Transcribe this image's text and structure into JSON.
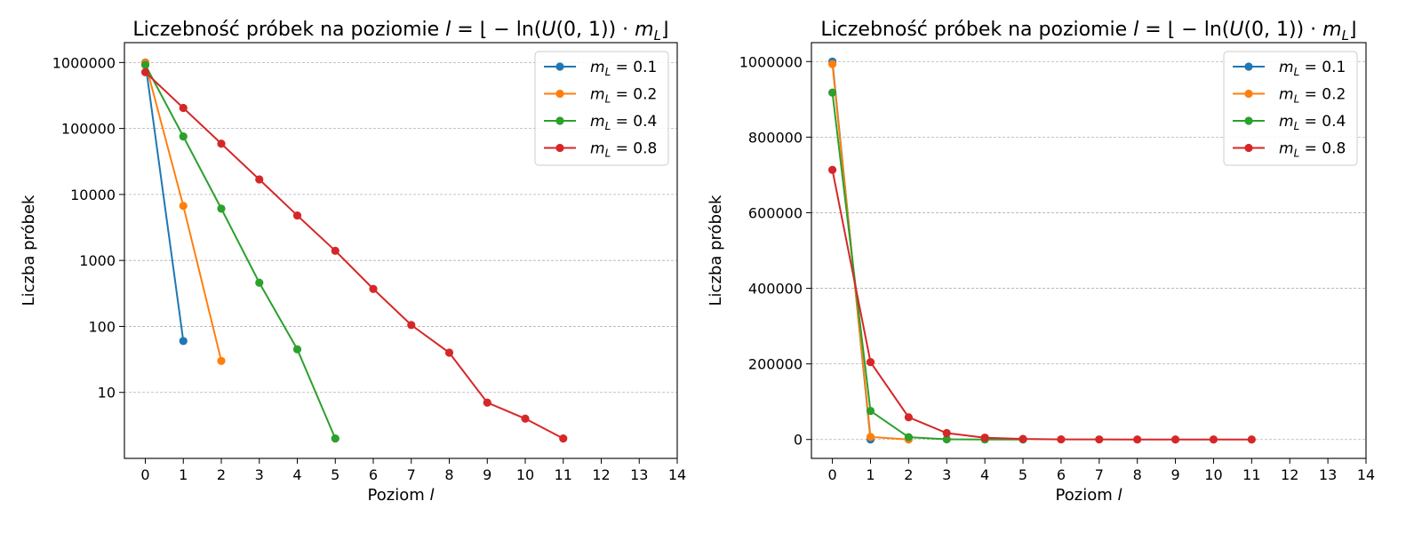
{
  "charts": [
    {
      "type": "line",
      "yscale": "log",
      "title_prefix": "Liczebność próbek na poziomie ",
      "title_var": "l",
      "title_mid": " = ⌊ − ln(",
      "title_U": "U",
      "title_args": "(0, 1)) · ",
      "title_m": "m",
      "title_sub": "L",
      "title_suffix": "⌋",
      "xlabel_text": "Poziom ",
      "xlabel_var": "l",
      "ylabel": "Liczba próbek",
      "xlim": [
        -0.55,
        14
      ],
      "ylim": [
        1.0,
        2000000
      ],
      "xticks": [
        0,
        1,
        2,
        3,
        4,
        5,
        6,
        7,
        8,
        9,
        10,
        11,
        12,
        13,
        14
      ],
      "yticks": [
        10,
        100,
        1000,
        10000,
        100000,
        1000000
      ],
      "ytick_labels": [
        "10",
        "100",
        "1000",
        "10000",
        "100000",
        "1000000"
      ],
      "grid": "y-dashed",
      "legend_position": "top-right",
      "legend": [
        {
          "m": "m",
          "sub": "L",
          "eq": " = 0.1"
        },
        {
          "m": "m",
          "sub": "L",
          "eq": " = 0.2"
        },
        {
          "m": "m",
          "sub": "L",
          "eq": " = 0.4"
        },
        {
          "m": "m",
          "sub": "L",
          "eq": " = 0.8"
        }
      ],
      "series": [
        {
          "color": "#1f77b4",
          "x": [
            0,
            1
          ],
          "y": [
            999940,
            60
          ]
        },
        {
          "color": "#ff7f0e",
          "x": [
            0,
            1,
            2
          ],
          "y": [
            993250,
            6720,
            30
          ]
        },
        {
          "color": "#2ca02c",
          "x": [
            0,
            1,
            2,
            3,
            4,
            5
          ],
          "y": [
            917900,
            75600,
            6100,
            460,
            45,
            2
          ]
        },
        {
          "color": "#d62728",
          "x": [
            0,
            1,
            2,
            3,
            4,
            5,
            6,
            7,
            8,
            9,
            10,
            11
          ],
          "y": [
            713400,
            204800,
            58800,
            16900,
            4800,
            1400,
            370,
            105,
            40,
            7,
            4,
            2
          ]
        }
      ]
    },
    {
      "type": "line",
      "yscale": "linear",
      "title_prefix": "Liczebność próbek na poziomie ",
      "title_var": "l",
      "title_mid": " = ⌊ − ln(",
      "title_U": "U",
      "title_args": "(0, 1)) · ",
      "title_m": "m",
      "title_sub": "L",
      "title_suffix": "⌋",
      "xlabel_text": "Poziom ",
      "xlabel_var": "l",
      "ylabel": "Liczba próbek",
      "xlim": [
        -0.55,
        14
      ],
      "ylim": [
        -50000,
        1050000
      ],
      "xticks": [
        0,
        1,
        2,
        3,
        4,
        5,
        6,
        7,
        8,
        9,
        10,
        11,
        12,
        13,
        14
      ],
      "yticks": [
        0,
        200000,
        400000,
        600000,
        800000,
        1000000
      ],
      "ytick_labels": [
        "0",
        "200000",
        "400000",
        "600000",
        "800000",
        "1000000"
      ],
      "grid": "y-dashed",
      "legend_position": "top-right",
      "legend": [
        {
          "m": "m",
          "sub": "L",
          "eq": " = 0.1"
        },
        {
          "m": "m",
          "sub": "L",
          "eq": " = 0.2"
        },
        {
          "m": "m",
          "sub": "L",
          "eq": " = 0.4"
        },
        {
          "m": "m",
          "sub": "L",
          "eq": " = 0.8"
        }
      ],
      "series": [
        {
          "color": "#1f77b4",
          "x": [
            0,
            1
          ],
          "y": [
            999940,
            60
          ]
        },
        {
          "color": "#ff7f0e",
          "x": [
            0,
            1,
            2
          ],
          "y": [
            993250,
            6720,
            30
          ]
        },
        {
          "color": "#2ca02c",
          "x": [
            0,
            1,
            2,
            3,
            4,
            5
          ],
          "y": [
            917900,
            75600,
            6100,
            460,
            45,
            2
          ]
        },
        {
          "color": "#d62728",
          "x": [
            0,
            1,
            2,
            3,
            4,
            5,
            6,
            7,
            8,
            9,
            10,
            11
          ],
          "y": [
            713400,
            204800,
            58800,
            16900,
            4800,
            1400,
            370,
            105,
            40,
            7,
            4,
            2
          ]
        }
      ]
    }
  ]
}
